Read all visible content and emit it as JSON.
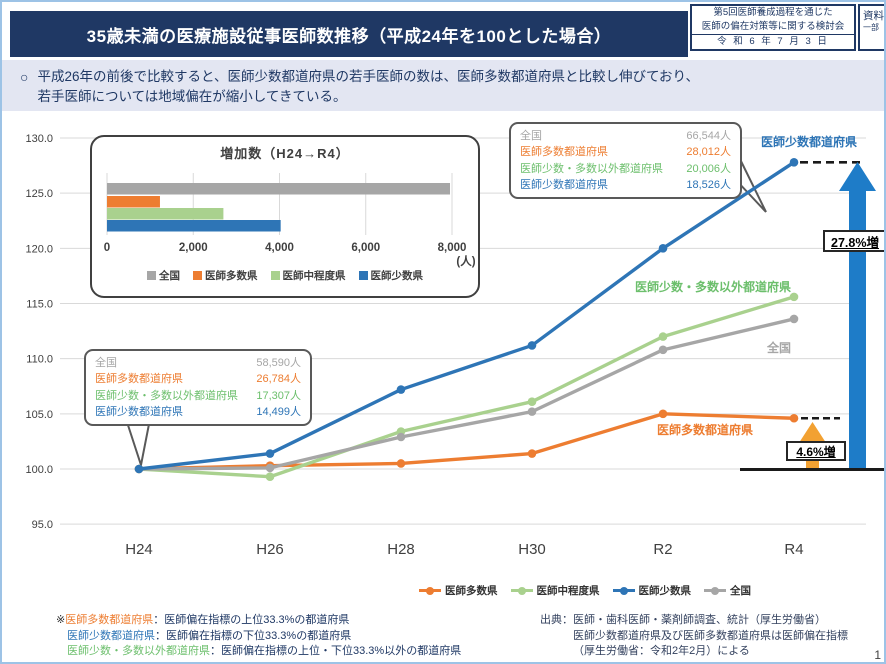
{
  "page": {
    "page_number": "1",
    "border_color": "#9DC3E6",
    "title_bar_color": "#1F3864",
    "summary_bg_color": "#E3E6F2"
  },
  "header": {
    "title": "35歳未満の医療施設従事医師数推移（平成24年を100とした場合）",
    "meta_box": {
      "line1": "第5回医師養成過程を通じた",
      "line2": "医師の偏在対策等に関する検討会",
      "date": "令 和 6 年 7 月 3 日"
    },
    "doc_box": {
      "line1": "資料",
      "line2": "一部"
    }
  },
  "summary": {
    "bullet": "○",
    "line1": "平成26年の前後で比較すると、医師少数都道府県の若手医師の数は、医師多数都道府県と比較し伸びており、",
    "line2": "若手医師については地域偏在が縮小してきている。"
  },
  "chart_data": [
    {
      "type": "line",
      "title": "35歳未満の医療施設従事医師数推移（平成24年を100とした場合）",
      "x": [
        "H24",
        "H26",
        "H28",
        "H30",
        "R2",
        "R4"
      ],
      "ylim": [
        95,
        130
      ],
      "yticks": [
        95,
        100,
        105,
        110,
        115,
        120,
        125,
        130
      ],
      "grid": true,
      "legend_position": "bottom",
      "series": [
        {
          "name": "医師多数県",
          "color": "#ED7D31",
          "values": [
            100,
            100.3,
            100.5,
            101.4,
            105.0,
            104.6
          ]
        },
        {
          "name": "医師中程度県",
          "color": "#A9D18E",
          "values": [
            100,
            99.3,
            103.4,
            106.1,
            112.0,
            115.6
          ]
        },
        {
          "name": "医師少数県",
          "color": "#2E75B6",
          "values": [
            100,
            101.4,
            107.2,
            111.2,
            120.0,
            127.8
          ]
        },
        {
          "name": "全国",
          "color": "#A6A6A6",
          "values": [
            100,
            100.1,
            102.9,
            105.2,
            110.8,
            113.6
          ]
        }
      ]
    },
    {
      "type": "bar",
      "title": "増加数（H24→R4）",
      "orientation": "horizontal",
      "categories": [
        "全国",
        "医師多数県",
        "医師中程度県",
        "医師少数県"
      ],
      "values": [
        7954,
        1228,
        2699,
        4027
      ],
      "colors": [
        "#A6A6A6",
        "#ED7D31",
        "#A9D18E",
        "#2E75B6"
      ],
      "xticks": [
        "0",
        "2,000",
        "4,000",
        "6,000",
        "8,000"
      ],
      "xtick_values": [
        0,
        2000,
        4000,
        6000,
        8000
      ],
      "xlim": [
        0,
        8000
      ],
      "unit": "(人)"
    }
  ],
  "callouts": {
    "h24": {
      "rows": [
        {
          "label": "全国",
          "value": "58,590人",
          "color": "#A6A6A6"
        },
        {
          "label": "医師多数都道府県",
          "value": "26,784人",
          "color": "#ED7D31"
        },
        {
          "label": "医師少数・多数以外都道府県",
          "value": "17,307人",
          "color": "#6CBF6C"
        },
        {
          "label": "医師少数都道府県",
          "value": "14,499人",
          "color": "#2E75B6"
        }
      ]
    },
    "r4": {
      "rows": [
        {
          "label": "全国",
          "value": "66,544人",
          "color": "#A6A6A6"
        },
        {
          "label": "医師多数都道府県",
          "value": "28,012人",
          "color": "#ED7D31"
        },
        {
          "label": "医師少数・多数以外都道府県",
          "value": "20,006人",
          "color": "#6CBF6C"
        },
        {
          "label": "医師少数都道府県",
          "value": "18,526人",
          "color": "#2E75B6"
        }
      ]
    }
  },
  "annotations": {
    "blue_line_label": "医師少数都道府県",
    "green_line_label": "医師少数・多数以外都道府県",
    "gray_line_label": "全国",
    "orange_line_label": "医師多数都道府県",
    "blue_increase": "27.8%増",
    "orange_increase": "4.6%増"
  },
  "legend": [
    {
      "label": "医師多数県",
      "color": "#ED7D31"
    },
    {
      "label": "医師中程度県",
      "color": "#A9D18E"
    },
    {
      "label": "医師少数県",
      "color": "#2E75B6"
    },
    {
      "label": "全国",
      "color": "#A6A6A6"
    }
  ],
  "footnotes": [
    {
      "prefix": "※",
      "term": "医師多数都道府県",
      "term_color": "#ED7D31",
      "desc": "：医師偏在指標の上位33.3%の都道府県"
    },
    {
      "prefix": "",
      "term": "医師少数都道府県",
      "term_color": "#2E75B6",
      "desc": "：医師偏在指標の下位33.3%の都道府県"
    },
    {
      "prefix": "",
      "term": "医師少数・多数以外都道府県",
      "term_color": "#6CBF6C",
      "desc": "：医師偏在指標の上位・下位33.3%以外の都道府県"
    }
  ],
  "source": [
    "出典：医師・歯科医師・薬剤師調査、統計（厚生労働省）",
    "医師少数都道府県及び医師多数都道府県は医師偏在指標",
    "（厚生労働省：令和2年2月）による"
  ]
}
